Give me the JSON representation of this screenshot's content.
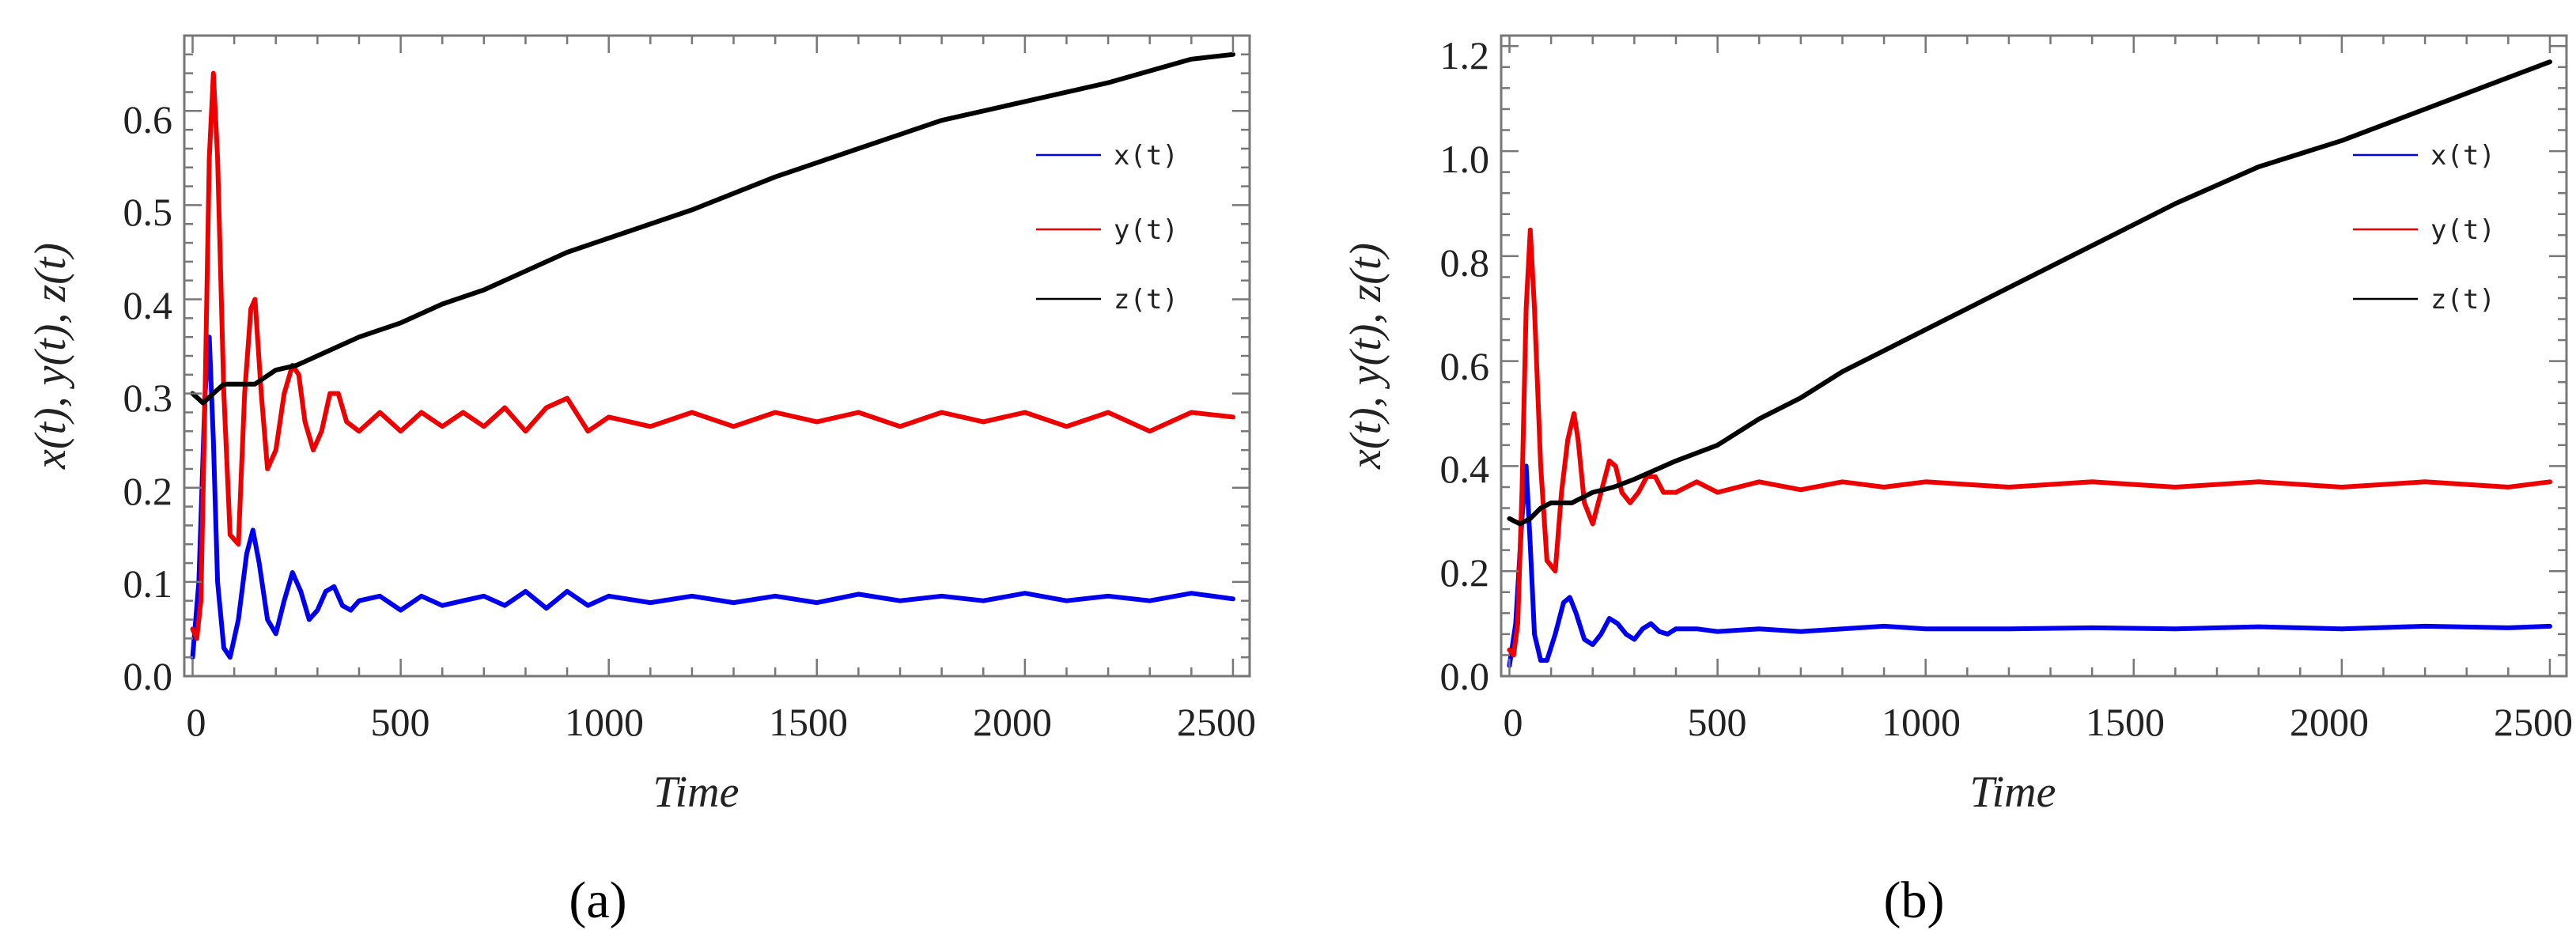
{
  "colors": {
    "x": "#0000ee",
    "y": "#ee0000",
    "z": "#000000",
    "frame": "#777777",
    "text": "#222222"
  },
  "chart_data": [
    {
      "type": "line",
      "panel_label": "(a)",
      "xlabel": "Time",
      "ylabel": "x(t),  y(t),  z(t)",
      "xlim": [
        -20,
        2540
      ],
      "ylim": [
        0,
        0.68
      ],
      "xticks": [
        0,
        500,
        1000,
        1500,
        2000,
        2500
      ],
      "xtick_labels": [
        "0",
        "500",
        "1000",
        "1500",
        "2000",
        "2500"
      ],
      "yticks": [
        0.0,
        0.1,
        0.2,
        0.3,
        0.4,
        0.5,
        0.6
      ],
      "ytick_labels": [
        "0.0",
        "0.1",
        "0.2",
        "0.3",
        "0.4",
        "0.5",
        "0.6"
      ],
      "legend": {
        "position": "top-right",
        "entries": [
          "x(t)",
          "y(t)",
          "z(t)"
        ]
      },
      "series": [
        {
          "name": "x(t)",
          "x": [
            0,
            15,
            30,
            40,
            50,
            60,
            75,
            90,
            110,
            130,
            145,
            160,
            180,
            200,
            220,
            240,
            260,
            280,
            300,
            320,
            340,
            360,
            380,
            400,
            450,
            500,
            550,
            600,
            650,
            700,
            750,
            800,
            850,
            900,
            950,
            1000,
            1100,
            1200,
            1300,
            1400,
            1500,
            1600,
            1700,
            1800,
            1900,
            2000,
            2100,
            2200,
            2300,
            2400,
            2500
          ],
          "values": [
            0.02,
            0.1,
            0.3,
            0.36,
            0.25,
            0.1,
            0.03,
            0.02,
            0.06,
            0.13,
            0.155,
            0.12,
            0.06,
            0.045,
            0.08,
            0.11,
            0.09,
            0.06,
            0.07,
            0.09,
            0.095,
            0.075,
            0.07,
            0.08,
            0.085,
            0.07,
            0.085,
            0.075,
            0.08,
            0.085,
            0.075,
            0.09,
            0.072,
            0.09,
            0.075,
            0.085,
            0.078,
            0.085,
            0.078,
            0.085,
            0.078,
            0.087,
            0.08,
            0.085,
            0.08,
            0.088,
            0.08,
            0.085,
            0.08,
            0.088,
            0.082
          ]
        },
        {
          "name": "y(t)",
          "x": [
            0,
            10,
            20,
            30,
            40,
            50,
            60,
            75,
            90,
            110,
            125,
            140,
            150,
            165,
            180,
            200,
            220,
            240,
            255,
            270,
            290,
            310,
            330,
            350,
            370,
            400,
            450,
            500,
            550,
            600,
            650,
            700,
            750,
            800,
            850,
            900,
            950,
            1000,
            1100,
            1200,
            1300,
            1400,
            1500,
            1600,
            1700,
            1800,
            1900,
            2000,
            2100,
            2200,
            2300,
            2400,
            2500
          ],
          "values": [
            0.05,
            0.04,
            0.08,
            0.3,
            0.55,
            0.64,
            0.55,
            0.3,
            0.15,
            0.14,
            0.3,
            0.39,
            0.4,
            0.3,
            0.22,
            0.24,
            0.3,
            0.33,
            0.32,
            0.27,
            0.24,
            0.26,
            0.3,
            0.3,
            0.27,
            0.26,
            0.28,
            0.26,
            0.28,
            0.265,
            0.28,
            0.265,
            0.285,
            0.26,
            0.285,
            0.295,
            0.26,
            0.275,
            0.265,
            0.28,
            0.265,
            0.28,
            0.27,
            0.28,
            0.265,
            0.28,
            0.27,
            0.28,
            0.265,
            0.28,
            0.26,
            0.28,
            0.275
          ]
        },
        {
          "name": "z(t)",
          "x": [
            0,
            25,
            50,
            75,
            100,
            150,
            200,
            250,
            300,
            400,
            500,
            600,
            700,
            800,
            900,
            1000,
            1200,
            1400,
            1600,
            1800,
            2000,
            2200,
            2400,
            2500
          ],
          "values": [
            0.3,
            0.29,
            0.3,
            0.31,
            0.31,
            0.31,
            0.325,
            0.33,
            0.34,
            0.36,
            0.375,
            0.395,
            0.41,
            0.43,
            0.45,
            0.465,
            0.495,
            0.53,
            0.56,
            0.59,
            0.61,
            0.63,
            0.655,
            0.66
          ]
        }
      ]
    },
    {
      "type": "line",
      "panel_label": "(b)",
      "xlabel": "Time",
      "ylabel": "x(t),  y(t),  z(t)",
      "xlim": [
        -20,
        2540
      ],
      "ylim": [
        0,
        1.22
      ],
      "xticks": [
        0,
        500,
        1000,
        1500,
        2000,
        2500
      ],
      "xtick_labels": [
        "0",
        "500",
        "1000",
        "1500",
        "2000",
        "2500"
      ],
      "yticks": [
        0.0,
        0.2,
        0.4,
        0.6,
        0.8,
        1.0,
        1.2
      ],
      "ytick_labels": [
        "0.0",
        "0.2",
        "0.4",
        "0.6",
        "0.8",
        "1.0",
        "1.2"
      ],
      "legend": {
        "position": "top-right",
        "entries": [
          "x(t)",
          "y(t)",
          "z(t)"
        ]
      },
      "series": [
        {
          "name": "x(t)",
          "x": [
            0,
            15,
            30,
            40,
            50,
            60,
            75,
            90,
            110,
            130,
            145,
            160,
            180,
            200,
            220,
            240,
            260,
            280,
            300,
            320,
            340,
            360,
            380,
            400,
            450,
            500,
            600,
            700,
            800,
            900,
            1000,
            1200,
            1400,
            1600,
            1800,
            2000,
            2200,
            2400,
            2500
          ],
          "values": [
            0.02,
            0.1,
            0.3,
            0.4,
            0.25,
            0.08,
            0.03,
            0.03,
            0.08,
            0.14,
            0.15,
            0.12,
            0.07,
            0.06,
            0.08,
            0.11,
            0.1,
            0.08,
            0.07,
            0.09,
            0.1,
            0.085,
            0.08,
            0.09,
            0.09,
            0.085,
            0.09,
            0.085,
            0.09,
            0.095,
            0.09,
            0.09,
            0.092,
            0.09,
            0.094,
            0.09,
            0.095,
            0.092,
            0.095
          ]
        },
        {
          "name": "y(t)",
          "x": [
            0,
            10,
            20,
            30,
            40,
            50,
            60,
            75,
            90,
            110,
            125,
            140,
            155,
            165,
            180,
            200,
            220,
            240,
            255,
            270,
            290,
            310,
            330,
            350,
            370,
            400,
            450,
            500,
            600,
            700,
            800,
            900,
            1000,
            1200,
            1400,
            1600,
            1800,
            2000,
            2200,
            2400,
            2500
          ],
          "values": [
            0.05,
            0.04,
            0.1,
            0.35,
            0.7,
            0.85,
            0.7,
            0.4,
            0.22,
            0.2,
            0.35,
            0.45,
            0.5,
            0.45,
            0.33,
            0.29,
            0.35,
            0.41,
            0.4,
            0.35,
            0.33,
            0.35,
            0.38,
            0.38,
            0.35,
            0.35,
            0.37,
            0.35,
            0.37,
            0.355,
            0.37,
            0.36,
            0.37,
            0.36,
            0.37,
            0.36,
            0.37,
            0.36,
            0.37,
            0.36,
            0.37
          ]
        },
        {
          "name": "z(t)",
          "x": [
            0,
            25,
            50,
            75,
            100,
            150,
            200,
            250,
            300,
            400,
            500,
            600,
            700,
            800,
            900,
            1000,
            1200,
            1400,
            1600,
            1800,
            2000,
            2200,
            2400,
            2500
          ],
          "values": [
            0.3,
            0.29,
            0.3,
            0.32,
            0.33,
            0.33,
            0.35,
            0.36,
            0.375,
            0.41,
            0.44,
            0.49,
            0.53,
            0.58,
            0.62,
            0.66,
            0.74,
            0.82,
            0.9,
            0.97,
            1.02,
            1.08,
            1.14,
            1.17
          ]
        }
      ]
    }
  ]
}
